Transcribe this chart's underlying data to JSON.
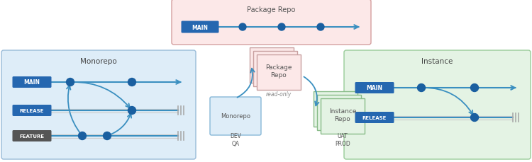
{
  "title_package_repo": "Package Repo",
  "title_monorepo": "Monorepo",
  "title_instance": "Instance",
  "label_main": "MAIN",
  "label_release": "RELEASE",
  "label_feature": "FEATURE",
  "label_package_repo_center": "Package\nRepo",
  "label_read_only": "read-only",
  "label_monorepo_box": "Monorepo",
  "label_dev_qa": "DEV\nQA",
  "label_instance_repo": "Instance\nRepo",
  "label_uat_prod": "UAT\nPROD",
  "bg_color": "#ffffff",
  "pkg_repo_top_bg": "#fce8e8",
  "pkg_repo_top_border": "#d4a0a0",
  "monorepo_bg": "#deedf8",
  "monorepo_border": "#99bbd8",
  "instance_bg": "#e4f3e4",
  "instance_border": "#99cc99",
  "btn_main_color": "#2567b0",
  "btn_release_color": "#2567b0",
  "btn_feature_color": "#555555",
  "branch_line_color": "#3a8fc0",
  "dot_color": "#1a5fa0",
  "pkg_stack_fill": "#fce8e8",
  "pkg_stack_border": "#c8a0a0",
  "inst_stack_fill": "#e4f3e4",
  "inst_stack_border": "#88bb88",
  "mono_box_fill": "#deedf8",
  "mono_box_border": "#88b8d8"
}
